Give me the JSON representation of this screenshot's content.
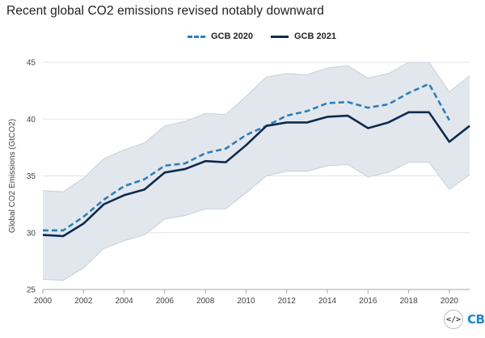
{
  "chart_data": {
    "type": "line",
    "title": "Recent global CO2 emissions revised notably downward",
    "ylabel": "Global CO2 Emissions (GtCO2)",
    "xlabel": "",
    "ylim": [
      25,
      45
    ],
    "xlim": [
      2000,
      2021
    ],
    "yticks": [
      25,
      30,
      35,
      40,
      45
    ],
    "xticks": [
      2000,
      2002,
      2004,
      2006,
      2008,
      2010,
      2012,
      2014,
      2016,
      2018,
      2020
    ],
    "grid": true,
    "legend_position": "top-center",
    "series": [
      {
        "name": "GCB 2020",
        "style": "dashed",
        "color": "#2e7fb8",
        "x": [
          2000,
          2001,
          2002,
          2003,
          2004,
          2005,
          2006,
          2007,
          2008,
          2009,
          2010,
          2011,
          2012,
          2013,
          2014,
          2015,
          2016,
          2017,
          2018,
          2019,
          2020
        ],
        "values": [
          30.2,
          30.2,
          31.4,
          32.9,
          34.1,
          34.7,
          35.9,
          36.1,
          37.0,
          37.4,
          38.6,
          39.4,
          40.3,
          40.7,
          41.4,
          41.5,
          41.0,
          41.3,
          42.3,
          43.1,
          39.9
        ]
      },
      {
        "name": "GCB 2021",
        "style": "solid",
        "color": "#0e2a4e",
        "x": [
          2000,
          2001,
          2002,
          2003,
          2004,
          2005,
          2006,
          2007,
          2008,
          2009,
          2010,
          2011,
          2012,
          2013,
          2014,
          2015,
          2016,
          2017,
          2018,
          2019,
          2020,
          2021
        ],
        "values": [
          29.8,
          29.7,
          30.8,
          32.5,
          33.3,
          33.8,
          35.3,
          35.6,
          36.3,
          36.2,
          37.7,
          39.4,
          39.7,
          39.7,
          40.2,
          40.3,
          39.2,
          39.7,
          40.6,
          40.6,
          38.0,
          39.4
        ]
      }
    ],
    "uncertainty_band": {
      "color": "#e2e7ed",
      "x": [
        2000,
        2001,
        2002,
        2003,
        2004,
        2005,
        2006,
        2007,
        2008,
        2009,
        2010,
        2011,
        2012,
        2013,
        2014,
        2015,
        2016,
        2017,
        2018,
        2019,
        2020,
        2021
      ],
      "upper": [
        33.7,
        33.6,
        34.8,
        36.5,
        37.3,
        37.9,
        39.4,
        39.8,
        40.5,
        40.4,
        42.0,
        43.7,
        44.0,
        43.9,
        44.5,
        44.7,
        43.6,
        44.0,
        45.0,
        45.0,
        42.4,
        43.8
      ],
      "lower": [
        25.9,
        25.8,
        26.9,
        28.6,
        29.3,
        29.8,
        31.2,
        31.5,
        32.1,
        32.1,
        33.5,
        35.0,
        35.4,
        35.4,
        35.9,
        36.0,
        34.9,
        35.3,
        36.2,
        36.2,
        33.8,
        35.1
      ]
    }
  },
  "logo": {
    "code_icon": "</>",
    "brand": "CB"
  }
}
